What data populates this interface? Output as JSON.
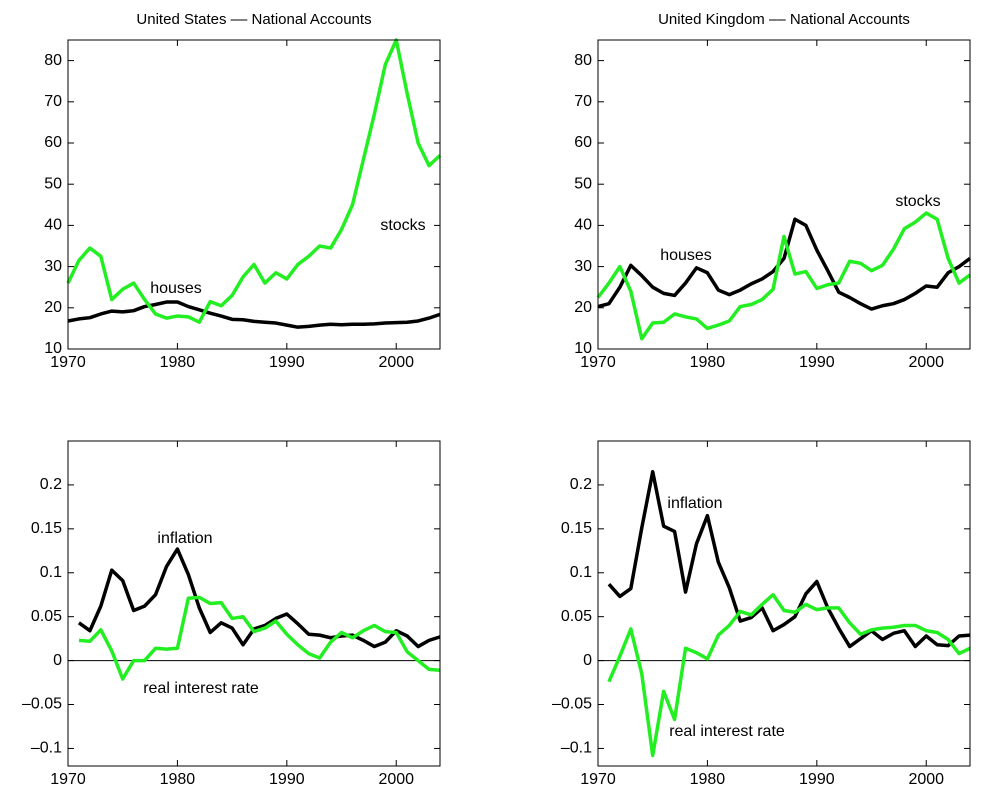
{
  "chart_data": [
    {
      "type": "line",
      "title": "United States –– National Accounts",
      "x": [
        1970,
        1971,
        1972,
        1973,
        1974,
        1975,
        1976,
        1977,
        1978,
        1979,
        1980,
        1981,
        1982,
        1983,
        1984,
        1985,
        1986,
        1987,
        1988,
        1989,
        1990,
        1991,
        1992,
        1993,
        1994,
        1995,
        1996,
        1997,
        1998,
        1999,
        2000,
        2001,
        2002,
        2003,
        2004
      ],
      "series": [
        {
          "name": "houses",
          "color": "#000000",
          "values": [
            16.8,
            17.3,
            17.6,
            18.5,
            19.2,
            19.0,
            19.3,
            20.3,
            20.8,
            21.4,
            21.4,
            20.3,
            19.5,
            18.7,
            18.0,
            17.2,
            17.1,
            16.7,
            16.5,
            16.3,
            15.8,
            15.3,
            15.5,
            15.8,
            16.0,
            15.9,
            16.0,
            16.0,
            16.1,
            16.3,
            16.4,
            16.5,
            16.8,
            17.5,
            18.4
          ]
        },
        {
          "name": "stocks",
          "color": "#22ee22",
          "values": [
            26,
            31.5,
            34.5,
            32.5,
            22,
            24.5,
            26,
            22,
            18.5,
            17.5,
            18,
            17.8,
            16.5,
            21.5,
            20.5,
            23,
            27.5,
            30.5,
            26,
            28.5,
            27,
            30.5,
            32.5,
            35,
            34.5,
            39,
            45,
            56,
            67,
            79,
            85,
            72,
            60,
            54.5,
            57
          ]
        }
      ],
      "xlim": [
        1970,
        2004
      ],
      "xticks": [
        1970,
        1980,
        1990,
        2000
      ],
      "ylim": [
        10,
        85
      ],
      "yticks": [
        10,
        20,
        30,
        40,
        50,
        60,
        70,
        80
      ]
    },
    {
      "type": "line",
      "title": "United Kingdom –– National Accounts",
      "x": [
        1970,
        1971,
        1972,
        1973,
        1974,
        1975,
        1976,
        1977,
        1978,
        1979,
        1980,
        1981,
        1982,
        1983,
        1984,
        1985,
        1986,
        1987,
        1988,
        1989,
        1990,
        1991,
        1992,
        1993,
        1994,
        1995,
        1996,
        1997,
        1998,
        1999,
        2000,
        2001,
        2002,
        2003,
        2004
      ],
      "series": [
        {
          "name": "houses",
          "color": "#000000",
          "values": [
            20.3,
            21,
            25,
            30.3,
            27.8,
            25,
            23.5,
            23,
            26,
            29.7,
            28.5,
            24.3,
            23.2,
            24.3,
            25.8,
            27,
            28.8,
            32,
            41.5,
            40,
            34,
            29,
            23.8,
            22.5,
            21,
            19.7,
            20.5,
            21,
            22,
            23.5,
            25.3,
            25,
            28.5,
            30,
            32
          ]
        },
        {
          "name": "stocks",
          "color": "#22ee22",
          "values": [
            22.5,
            26,
            30,
            24,
            12.5,
            16.3,
            16.5,
            18.5,
            17.8,
            17.3,
            15,
            15.8,
            16.8,
            20.3,
            20.8,
            22,
            24.5,
            37.3,
            28.2,
            28.8,
            24.7,
            25.6,
            26,
            31.3,
            30.8,
            29,
            30.3,
            34.2,
            39.2,
            40.8,
            43,
            41.5,
            32,
            26,
            28
          ]
        }
      ],
      "xlim": [
        1970,
        2004
      ],
      "xticks": [
        1970,
        1980,
        1990,
        2000
      ],
      "ylim": [
        10,
        85
      ],
      "yticks": [
        10,
        20,
        30,
        40,
        50,
        60,
        70,
        80
      ]
    },
    {
      "type": "line",
      "x": [
        1971,
        1972,
        1973,
        1974,
        1975,
        1976,
        1977,
        1978,
        1979,
        1980,
        1981,
        1982,
        1983,
        1984,
        1985,
        1986,
        1987,
        1988,
        1989,
        1990,
        1991,
        1992,
        1993,
        1994,
        1995,
        1996,
        1997,
        1998,
        1999,
        2000,
        2001,
        2002,
        2003,
        2004
      ],
      "series": [
        {
          "name": "inflation",
          "color": "#000000",
          "values": [
            0.043,
            0.034,
            0.062,
            0.103,
            0.091,
            0.057,
            0.062,
            0.075,
            0.107,
            0.127,
            0.098,
            0.06,
            0.032,
            0.043,
            0.037,
            0.018,
            0.036,
            0.04,
            0.048,
            0.053,
            0.042,
            0.03,
            0.029,
            0.026,
            0.028,
            0.029,
            0.023,
            0.016,
            0.021,
            0.034,
            0.028,
            0.016,
            0.023,
            0.027
          ]
        },
        {
          "name": "real interest rate",
          "color": "#22ee22",
          "values": [
            0.023,
            0.022,
            0.035,
            0.011,
            -0.021,
            0.0,
            0.0,
            0.014,
            0.013,
            0.014,
            0.071,
            0.072,
            0.065,
            0.066,
            0.048,
            0.05,
            0.033,
            0.037,
            0.045,
            0.03,
            0.018,
            0.008,
            0.003,
            0.021,
            0.032,
            0.026,
            0.034,
            0.04,
            0.033,
            0.032,
            0.01,
            0.0,
            -0.01,
            -0.011
          ]
        }
      ],
      "xlim": [
        1970,
        2004
      ],
      "xticks": [
        1970,
        1980,
        1990,
        2000
      ],
      "ylim": [
        -0.12,
        0.25
      ],
      "yticks": [
        0.2,
        0.15,
        0.1,
        0.05,
        0,
        {
          "value": -0.05,
          "label": "–0.05"
        },
        {
          "value": -0.1,
          "label": "–0.1"
        }
      ]
    },
    {
      "type": "line",
      "x": [
        1971,
        1972,
        1973,
        1974,
        1975,
        1976,
        1977,
        1978,
        1979,
        1980,
        1981,
        1982,
        1983,
        1984,
        1985,
        1986,
        1987,
        1988,
        1989,
        1990,
        1991,
        1992,
        1993,
        1994,
        1995,
        1996,
        1997,
        1998,
        1999,
        2000,
        2001,
        2002,
        2003,
        2004
      ],
      "series": [
        {
          "name": "inflation",
          "color": "#000000",
          "values": [
            0.087,
            0.073,
            0.082,
            0.151,
            0.215,
            0.153,
            0.147,
            0.078,
            0.133,
            0.165,
            0.112,
            0.083,
            0.045,
            0.049,
            0.06,
            0.034,
            0.041,
            0.05,
            0.076,
            0.09,
            0.06,
            0.037,
            0.016,
            0.025,
            0.034,
            0.024,
            0.031,
            0.034,
            0.016,
            0.028,
            0.018,
            0.017,
            0.028,
            0.029
          ]
        },
        {
          "name": "real interest rate",
          "color": "#22ee22",
          "values": [
            -0.024,
            0.005,
            0.036,
            -0.015,
            -0.108,
            -0.035,
            -0.067,
            0.014,
            0.009,
            0.002,
            0.029,
            0.04,
            0.056,
            0.052,
            0.064,
            0.075,
            0.057,
            0.055,
            0.064,
            0.058,
            0.06,
            0.06,
            0.043,
            0.03,
            0.035,
            0.037,
            0.038,
            0.04,
            0.04,
            0.034,
            0.032,
            0.024,
            0.008,
            0.014
          ]
        }
      ],
      "xlim": [
        1970,
        2004
      ],
      "xticks": [
        1970,
        1980,
        1990,
        2000
      ],
      "ylim": [
        -0.12,
        0.25
      ],
      "yticks": [
        0.2,
        0.15,
        0.1,
        0.05,
        0,
        {
          "value": -0.05,
          "label": "–0.05"
        },
        {
          "value": -0.1,
          "label": "–0.1"
        }
      ]
    }
  ]
}
